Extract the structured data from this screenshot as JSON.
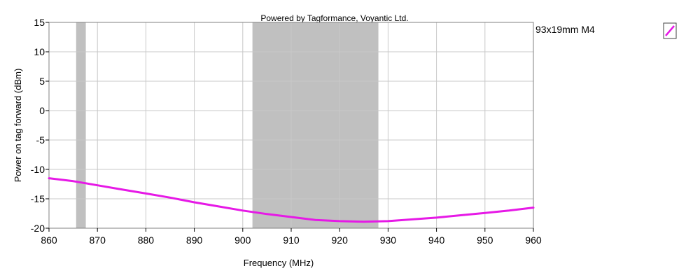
{
  "chart_data": {
    "type": "line",
    "subtitle": "Powered by Tagformance, Voyantic Ltd.",
    "xlabel": "Frequency (MHz)",
    "ylabel": "Power on tag forward (dBm)",
    "xlim": [
      860,
      960
    ],
    "ylim": [
      -20,
      15
    ],
    "xticks": [
      860,
      870,
      880,
      890,
      900,
      910,
      920,
      930,
      940,
      950,
      960
    ],
    "yticks": [
      15,
      10,
      5,
      0,
      -5,
      -10,
      -15,
      -20
    ],
    "grid": true,
    "legend_position": "top-right",
    "shaded_bands": [
      {
        "x0": 865.6,
        "x1": 867.6,
        "color": "#c0c0c0"
      },
      {
        "x0": 902,
        "x1": 928,
        "color": "#c0c0c0"
      }
    ],
    "series": [
      {
        "name": "93x19mm M4",
        "color": "#e619e6",
        "x": [
          860,
          865,
          870,
          875,
          880,
          885,
          890,
          895,
          900,
          905,
          910,
          915,
          920,
          925,
          930,
          935,
          940,
          945,
          950,
          955,
          960
        ],
        "y": [
          -11.5,
          -12.0,
          -12.7,
          -13.4,
          -14.1,
          -14.8,
          -15.6,
          -16.3,
          -17.0,
          -17.6,
          -18.1,
          -18.6,
          -18.8,
          -18.9,
          -18.8,
          -18.5,
          -18.2,
          -17.8,
          -17.4,
          -17.0,
          -16.5
        ]
      }
    ]
  }
}
